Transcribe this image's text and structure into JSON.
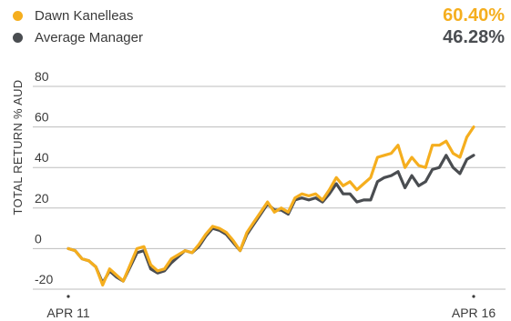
{
  "legend": [
    {
      "name": "Dawn Kanelleas",
      "value": "60.40%",
      "color": "#F5AE1E"
    },
    {
      "name": "Average Manager",
      "value": "46.28%",
      "color": "#4A4D51"
    }
  ],
  "chart_data": {
    "type": "line",
    "ylabel": "TOTAL RETURN % AUD",
    "xlabel": "",
    "ylim": [
      -20,
      80
    ],
    "yticks": [
      80,
      60,
      40,
      20,
      0,
      -20
    ],
    "xtick_labels": [
      "APR 11",
      "APR 16"
    ],
    "grid": true,
    "legend_position": "top",
    "series": [
      {
        "name": "Dawn Kanelleas",
        "color": "#F5AE1E",
        "values": [
          0,
          -1,
          -5,
          -6,
          -9,
          -18,
          -10,
          -13,
          -16,
          -8,
          0,
          1,
          -8,
          -11,
          -10,
          -5,
          -3,
          -1,
          -2,
          2,
          7,
          11,
          10,
          8,
          4,
          -1,
          8,
          13,
          18,
          23,
          18,
          20,
          18,
          25,
          27,
          26,
          27,
          24,
          29,
          35,
          31,
          33,
          29,
          32,
          35,
          45,
          46,
          47,
          51,
          40,
          45,
          41,
          40,
          51,
          51,
          53,
          47,
          45,
          55,
          60
        ]
      },
      {
        "name": "Average Manager",
        "color": "#4A4D51",
        "values": [
          0,
          -1,
          -5,
          -6,
          -9,
          -17,
          -11,
          -14,
          -16,
          -9,
          -2,
          -1,
          -10,
          -12,
          -11,
          -7,
          -4,
          -1,
          -2,
          1,
          6,
          10,
          9,
          7,
          3,
          -1,
          7,
          12,
          17,
          22,
          19,
          19,
          17,
          24,
          25,
          24,
          25,
          23,
          27,
          32,
          27,
          27,
          23,
          24,
          24,
          33,
          35,
          36,
          38,
          30,
          36,
          31,
          33,
          39,
          40,
          46,
          40,
          37,
          44,
          46
        ]
      }
    ]
  }
}
